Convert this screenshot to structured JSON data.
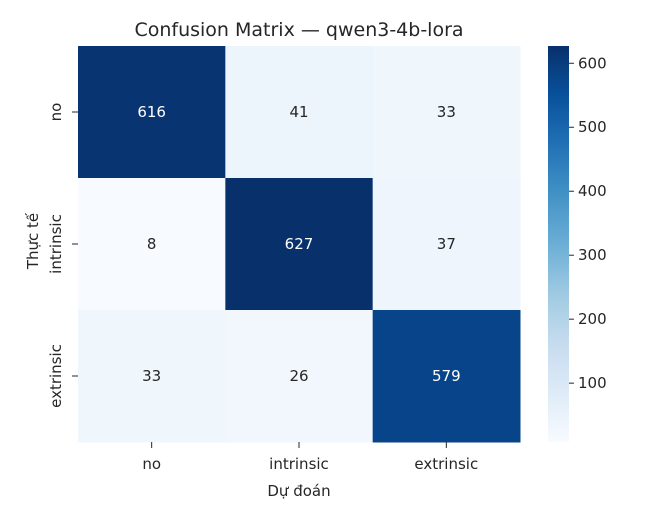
{
  "chart_data": {
    "type": "heatmap",
    "title": "Confusion Matrix — qwen3-4b-lora",
    "xlabel": "Dự đoán",
    "ylabel": "Thực tế",
    "x_categories": [
      "no",
      "intrinsic",
      "extrinsic"
    ],
    "y_categories": [
      "no",
      "intrinsic",
      "extrinsic"
    ],
    "matrix": [
      [
        616,
        41,
        33
      ],
      [
        8,
        627,
        37
      ],
      [
        33,
        26,
        579
      ]
    ],
    "colormap": "Blues",
    "color_range": [
      8,
      627
    ],
    "colorbar_ticks": [
      100,
      200,
      300,
      400,
      500,
      600
    ],
    "colors": {
      "low": "#f7fbff",
      "high": "#08306b",
      "annotation_dark": "#262626",
      "annotation_light": "#ffffff"
    }
  }
}
